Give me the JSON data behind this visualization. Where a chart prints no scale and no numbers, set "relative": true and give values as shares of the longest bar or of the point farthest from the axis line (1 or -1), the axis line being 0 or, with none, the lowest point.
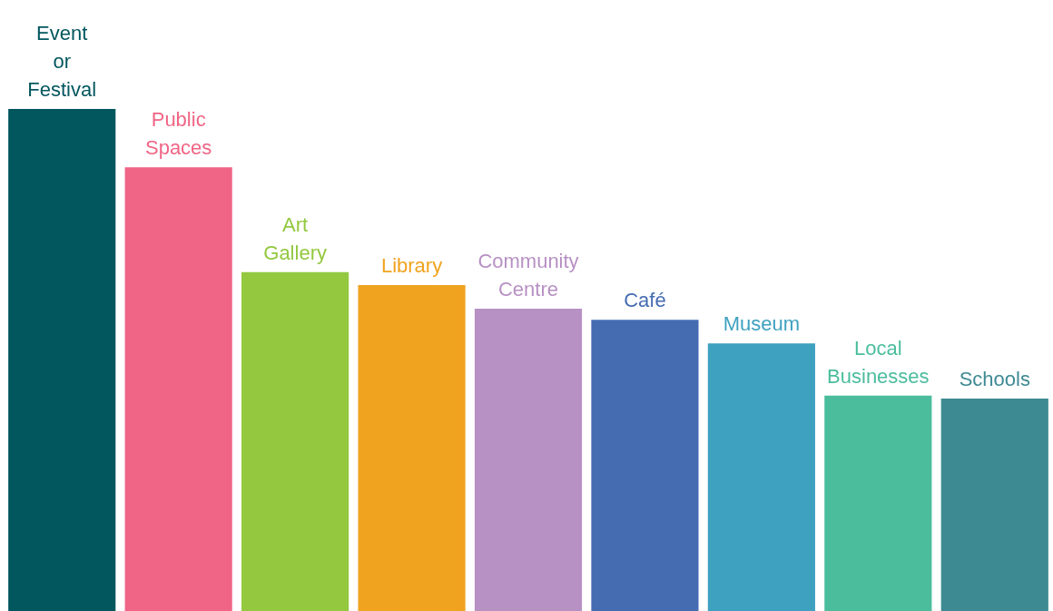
{
  "chart_data": {
    "type": "bar",
    "relative": true,
    "categories": [
      "Event or Festival",
      "Public Spaces",
      "Art Gallery",
      "Library",
      "Community Centre",
      "Café",
      "Museum",
      "Local Businesses",
      "Schools"
    ],
    "values": [
      1,
      0.884,
      0.675,
      0.649,
      0.602,
      0.58,
      0.533,
      0.429,
      0.423
    ],
    "colors": [
      "#02575f",
      "#f06585",
      "#93c83f",
      "#f0a31e",
      "#b891c4",
      "#456cb1",
      "#3fa1c0",
      "#4bbd9c",
      "#3e8a93"
    ]
  }
}
